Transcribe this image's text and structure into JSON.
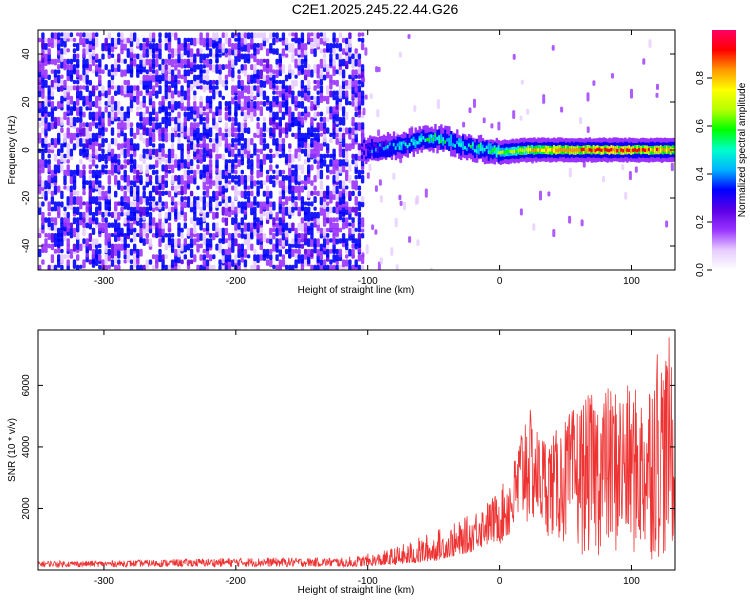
{
  "title": "C2E1.2025.245.22.44.G26",
  "chart_data": [
    {
      "type": "heatmap",
      "xlabel": "Height of straight line (km)",
      "ylabel": "Frequency (Hz)",
      "xlim": [
        -350,
        133
      ],
      "ylim": [
        -50,
        50
      ],
      "xticks": [
        -300,
        -200,
        -100,
        0,
        100
      ],
      "yticks": [
        -40,
        -20,
        0,
        20,
        40
      ],
      "grid": false,
      "colorbar": {
        "label": "Normalized spectral amplitude",
        "range": [
          0,
          1
        ],
        "ticks": [
          "0.0",
          "0.2",
          "0.4",
          "0.6",
          "0.8"
        ],
        "colors": [
          "#ffffff",
          "#e6ccff",
          "#9a33ff",
          "#5a00e6",
          "#0000ff",
          "#00b3ff",
          "#00ffcc",
          "#00ff00",
          "#b3ff00",
          "#ffff00",
          "#ff9900",
          "#ff0000",
          "#ff0066"
        ]
      },
      "signal_track": {
        "x": [
          -105,
          -90,
          -75,
          -60,
          -50,
          -40,
          -30,
          -20,
          -10,
          0,
          20,
          50,
          80,
          110,
          133
        ],
        "frequency": [
          0,
          1,
          2,
          4,
          5,
          4,
          2,
          1,
          0,
          -1,
          0,
          0,
          0,
          0,
          0
        ],
        "amplitude": [
          0.25,
          0.4,
          0.45,
          0.5,
          0.55,
          0.5,
          0.45,
          0.5,
          0.55,
          0.6,
          0.75,
          0.85,
          0.9,
          0.85,
          0.8
        ]
      },
      "noise_region": {
        "x": [
          -350,
          -105
        ],
        "amplitude": 0.3
      }
    },
    {
      "type": "line",
      "xlabel": "Height of straight line (km)",
      "ylabel": "SNR (10 * v/v)",
      "xlim": [
        -350,
        133
      ],
      "ylim": [
        0,
        7800
      ],
      "xticks": [
        -300,
        -200,
        -100,
        0,
        100
      ],
      "yticks": [
        2000,
        4000,
        6000
      ],
      "grid": false,
      "color": "#ee3333",
      "envelope": {
        "x": [
          -350,
          -300,
          -200,
          -120,
          -90,
          -70,
          -50,
          -30,
          -10,
          0,
          10,
          20,
          25,
          30,
          40,
          60,
          80,
          100,
          110,
          120,
          125,
          130,
          133
        ],
        "max": [
          300,
          300,
          400,
          400,
          600,
          900,
          1300,
          1600,
          2200,
          2600,
          3400,
          5600,
          5000,
          4500,
          4400,
          5500,
          6000,
          6000,
          5800,
          7600,
          7000,
          7800,
          3600
        ],
        "min": [
          100,
          100,
          100,
          100,
          150,
          200,
          300,
          500,
          700,
          800,
          900,
          1300,
          1400,
          1300,
          1000,
          500,
          400,
          400,
          300,
          300,
          300,
          200,
          1000
        ]
      }
    }
  ]
}
